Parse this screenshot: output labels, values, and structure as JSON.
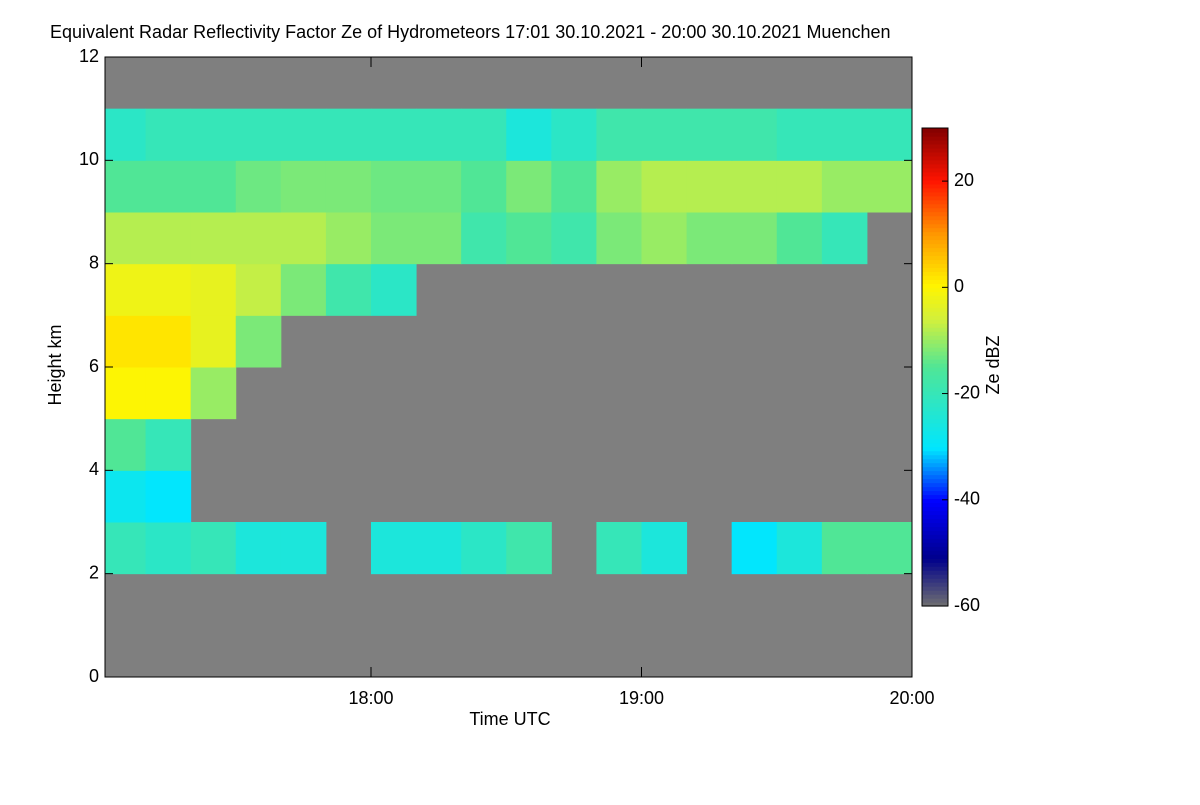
{
  "chart_data": {
    "type": "heatmap",
    "title": "Equivalent Radar Reflectivity Factor Ze of Hydrometeors   17:01 30.10.2021 - 20:00 30.10.2021 Muenchen",
    "x_label": "Time UTC",
    "y_label": "Height km",
    "colorbar_label": "Ze dBZ",
    "xlim": [
      1,
      180
    ],
    "xticks": [
      {
        "value": 60,
        "label": "18:00"
      },
      {
        "value": 120,
        "label": "19:00"
      },
      {
        "value": 180,
        "label": "20:00"
      }
    ],
    "ylim": [
      0,
      12
    ],
    "yticks": [
      0,
      2,
      4,
      6,
      8,
      10,
      12
    ],
    "clim": [
      -60,
      30
    ],
    "cticks": [
      -60,
      -40,
      -20,
      0,
      20
    ],
    "background": "#7f7f7f",
    "x_bins": [
      0,
      10,
      20,
      30,
      40,
      50,
      60,
      70,
      80,
      90,
      100,
      110,
      120,
      130,
      140,
      150,
      160,
      170,
      180
    ],
    "y_bins": [
      0,
      1,
      2,
      3,
      4,
      5,
      6,
      7,
      8,
      9,
      10,
      11,
      12
    ],
    "z": [
      [
        null,
        null,
        null,
        null,
        null,
        null,
        null,
        null,
        null,
        null,
        null,
        null,
        null,
        null,
        null,
        null,
        null,
        null
      ],
      [
        null,
        null,
        null,
        null,
        null,
        null,
        null,
        null,
        null,
        null,
        null,
        null,
        null,
        null,
        null,
        null,
        null,
        null
      ],
      [
        -20,
        -22,
        -20,
        -25,
        -25,
        null,
        -25,
        -25,
        -22,
        -18,
        null,
        -20,
        -25,
        null,
        -30,
        -25,
        -15,
        -15
      ],
      [
        -28,
        -30,
        null,
        null,
        null,
        null,
        null,
        null,
        null,
        null,
        null,
        null,
        null,
        null,
        null,
        null,
        null,
        null
      ],
      [
        -15,
        -20,
        null,
        null,
        null,
        null,
        null,
        null,
        null,
        null,
        null,
        null,
        null,
        null,
        null,
        null,
        null,
        null
      ],
      [
        0,
        0,
        -10,
        null,
        null,
        null,
        null,
        null,
        null,
        null,
        null,
        null,
        null,
        null,
        null,
        null,
        null,
        null
      ],
      [
        2,
        2,
        -3,
        -12,
        null,
        null,
        null,
        null,
        null,
        null,
        null,
        null,
        null,
        null,
        null,
        null,
        null,
        null
      ],
      [
        -2,
        -2,
        -3,
        -7,
        -12,
        -18,
        -22,
        null,
        null,
        null,
        null,
        null,
        null,
        null,
        null,
        null,
        null,
        null
      ],
      [
        -8,
        -8,
        -8,
        -8,
        -8,
        -10,
        -12,
        -12,
        -18,
        -15,
        -18,
        -12,
        -10,
        -12,
        -12,
        -15,
        -20,
        null
      ],
      [
        -15,
        -15,
        -15,
        -13,
        -12,
        -12,
        -13,
        -13,
        -15,
        -12,
        -15,
        -10,
        -8,
        -8,
        -8,
        -8,
        -10,
        -10
      ],
      [
        -22,
        -20,
        -20,
        -20,
        -20,
        -20,
        -20,
        -20,
        -20,
        -25,
        -22,
        -18,
        -18,
        -18,
        -18,
        -20,
        -20,
        -20
      ],
      [
        null,
        null,
        null,
        null,
        null,
        null,
        null,
        null,
        null,
        null,
        null,
        null,
        null,
        null,
        null,
        null,
        null,
        null
      ]
    ]
  }
}
